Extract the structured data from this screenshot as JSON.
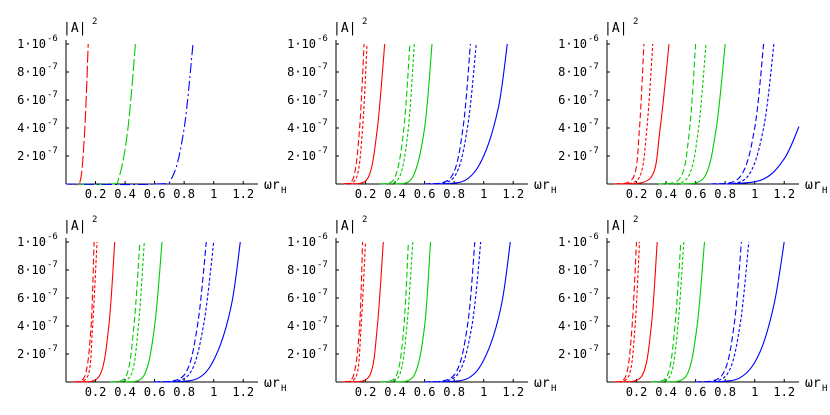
{
  "chart_data": [
    {
      "type": "line",
      "ylabel": "|A|",
      "ylabel_superscript": "2",
      "xlabel": "ωr",
      "xlabel_subscript": "H",
      "xlim": [
        0,
        1.3
      ],
      "ylim": [
        0,
        1e-06
      ],
      "xticks": [
        "0.2",
        "0.4",
        "0.6",
        "0.8",
        "1",
        "1.2"
      ],
      "yticks": [
        "2·10",
        "4·10",
        "6·10",
        "8·10",
        "1·10"
      ],
      "ytick_exponents": [
        "-7",
        "-7",
        "-7",
        "-7",
        "-6"
      ],
      "series": [
        {
          "color": "#ff0000",
          "style": "long-dash",
          "x": [
            0.0,
            0.05,
            0.1,
            0.13,
            0.15
          ],
          "y": [
            0.0,
            0.0,
            4e-08,
            4.5e-07,
            1e-06
          ]
        },
        {
          "color": "#00cc00",
          "style": "long-dash",
          "x": [
            0.0,
            0.3,
            0.36,
            0.42,
            0.47
          ],
          "y": [
            0.0,
            0.0,
            5e-08,
            4e-07,
            1e-06
          ]
        },
        {
          "color": "#0000ff",
          "style": "dash-dot",
          "x": [
            0.0,
            0.6,
            0.72,
            0.8,
            0.86
          ],
          "y": [
            0.0,
            0.0,
            5e-08,
            4e-07,
            1e-06
          ]
        }
      ]
    },
    {
      "type": "line",
      "ylabel": "|A|",
      "ylabel_superscript": "2",
      "xlabel": "ωr",
      "xlabel_subscript": "H",
      "xlim": [
        0,
        1.3
      ],
      "ylim": [
        0,
        1e-06
      ],
      "xticks": [
        "0.2",
        "0.4",
        "0.6",
        "0.8",
        "1",
        "1.2"
      ],
      "yticks": [
        "2·10",
        "4·10",
        "6·10",
        "8·10",
        "1·10"
      ],
      "ytick_exponents": [
        "-7",
        "-7",
        "-7",
        "-7",
        "-6"
      ],
      "series": [
        {
          "color": "#ff0000",
          "style": "dashed",
          "x": [
            0.05,
            0.12,
            0.16,
            0.19
          ],
          "y": [
            0.0,
            5e-08,
            4e-07,
            1e-06
          ]
        },
        {
          "color": "#ff0000",
          "style": "short-dash",
          "x": [
            0.05,
            0.14,
            0.18,
            0.21
          ],
          "y": [
            0.0,
            5e-08,
            4e-07,
            1e-06
          ]
        },
        {
          "color": "#ff0000",
          "style": "solid",
          "x": [
            0.1,
            0.22,
            0.28,
            0.33
          ],
          "y": [
            0.0,
            5e-08,
            4e-07,
            1e-06
          ]
        },
        {
          "color": "#00cc00",
          "style": "dashed",
          "x": [
            0.3,
            0.4,
            0.46,
            0.5
          ],
          "y": [
            0.0,
            5e-08,
            4e-07,
            1e-06
          ]
        },
        {
          "color": "#00cc00",
          "style": "short-dash",
          "x": [
            0.32,
            0.43,
            0.49,
            0.53
          ],
          "y": [
            0.0,
            5e-08,
            4e-07,
            1e-06
          ]
        },
        {
          "color": "#00cc00",
          "style": "solid",
          "x": [
            0.4,
            0.52,
            0.6,
            0.65
          ],
          "y": [
            0.0,
            5e-08,
            4e-07,
            1e-06
          ]
        },
        {
          "color": "#0000ff",
          "style": "dashed",
          "x": [
            0.6,
            0.78,
            0.86,
            0.91
          ],
          "y": [
            0.0,
            5e-08,
            4e-07,
            1e-06
          ]
        },
        {
          "color": "#0000ff",
          "style": "short-dash",
          "x": [
            0.62,
            0.8,
            0.89,
            0.95
          ],
          "y": [
            0.0,
            5e-08,
            4e-07,
            1e-06
          ]
        },
        {
          "color": "#0000ff",
          "style": "solid",
          "x": [
            0.7,
            0.88,
            1.0,
            1.1,
            1.16
          ],
          "y": [
            0.0,
            3e-08,
            2e-07,
            5.5e-07,
            1e-06
          ]
        }
      ]
    },
    {
      "type": "line",
      "ylabel": "|A|",
      "ylabel_superscript": "2",
      "xlabel": "ωr",
      "xlabel_subscript": "H",
      "xlim": [
        0,
        1.3
      ],
      "ylim": [
        0,
        1e-06
      ],
      "xticks": [
        "0.2",
        "0.4",
        "0.6",
        "0.8",
        "1",
        "1.2"
      ],
      "yticks": [
        "2·10",
        "4·10",
        "6·10",
        "8·10",
        "1·10"
      ],
      "ytick_exponents": [
        "-7",
        "-7",
        "-7",
        "-7",
        "-6"
      ],
      "series": [
        {
          "color": "#ff0000",
          "style": "dashed",
          "x": [
            0.05,
            0.18,
            0.22,
            0.25
          ],
          "y": [
            0.0,
            5e-08,
            4e-07,
            1e-06
          ]
        },
        {
          "color": "#ff0000",
          "style": "short-dash",
          "x": [
            0.08,
            0.22,
            0.27,
            0.31
          ],
          "y": [
            0.0,
            5e-08,
            4e-07,
            1e-06
          ]
        },
        {
          "color": "#ff0000",
          "style": "solid",
          "x": [
            0.1,
            0.3,
            0.36,
            0.42
          ],
          "y": [
            0.0,
            5e-08,
            4e-07,
            1e-06
          ]
        },
        {
          "color": "#00cc00",
          "style": "dashed",
          "x": [
            0.35,
            0.5,
            0.56,
            0.6
          ],
          "y": [
            0.0,
            5e-08,
            4e-07,
            1e-06
          ]
        },
        {
          "color": "#00cc00",
          "style": "short-dash",
          "x": [
            0.4,
            0.55,
            0.62,
            0.67
          ],
          "y": [
            0.0,
            5e-08,
            4e-07,
            1e-06
          ]
        },
        {
          "color": "#00cc00",
          "style": "solid",
          "x": [
            0.5,
            0.66,
            0.74,
            0.8
          ],
          "y": [
            0.0,
            5e-08,
            4e-07,
            1e-06
          ]
        },
        {
          "color": "#0000ff",
          "style": "dashed",
          "x": [
            0.7,
            0.9,
            1.0,
            1.06
          ],
          "y": [
            0.0,
            5e-08,
            4e-07,
            1e-06
          ]
        },
        {
          "color": "#0000ff",
          "style": "short-dash",
          "x": [
            0.75,
            0.95,
            1.06,
            1.13
          ],
          "y": [
            0.0,
            5e-08,
            4e-07,
            1e-06
          ]
        },
        {
          "color": "#0000ff",
          "style": "solid",
          "x": [
            0.8,
            1.05,
            1.2,
            1.3
          ],
          "y": [
            0.0,
            3e-08,
            1.8e-07,
            4.1e-07
          ]
        }
      ]
    },
    {
      "type": "line",
      "ylabel": "|A|",
      "ylabel_superscript": "2",
      "xlabel": "ωr",
      "xlabel_subscript": "H",
      "xlim": [
        0,
        1.3
      ],
      "ylim": [
        0,
        1e-06
      ],
      "xticks": [
        "0.2",
        "0.4",
        "0.6",
        "0.8",
        "1",
        "1.2"
      ],
      "yticks": [
        "2·10",
        "4·10",
        "6·10",
        "8·10",
        "1·10"
      ],
      "ytick_exponents": [
        "-7",
        "-7",
        "-7",
        "-7",
        "-6"
      ],
      "series": [
        {
          "color": "#ff0000",
          "style": "dashed",
          "x": [
            0.05,
            0.13,
            0.17,
            0.19
          ],
          "y": [
            0.0,
            5e-08,
            4e-07,
            1e-06
          ]
        },
        {
          "color": "#ff0000",
          "style": "short-dash",
          "x": [
            0.05,
            0.15,
            0.18,
            0.21
          ],
          "y": [
            0.0,
            5e-08,
            4e-07,
            1e-06
          ]
        },
        {
          "color": "#ff0000",
          "style": "solid",
          "x": [
            0.1,
            0.23,
            0.29,
            0.33
          ],
          "y": [
            0.0,
            5e-08,
            4e-07,
            1e-06
          ]
        },
        {
          "color": "#00cc00",
          "style": "dashed",
          "x": [
            0.3,
            0.41,
            0.46,
            0.5
          ],
          "y": [
            0.0,
            5e-08,
            4e-07,
            1e-06
          ]
        },
        {
          "color": "#00cc00",
          "style": "short-dash",
          "x": [
            0.32,
            0.44,
            0.49,
            0.53
          ],
          "y": [
            0.0,
            5e-08,
            4e-07,
            1e-06
          ]
        },
        {
          "color": "#00cc00",
          "style": "solid",
          "x": [
            0.4,
            0.53,
            0.6,
            0.65
          ],
          "y": [
            0.0,
            5e-08,
            4e-07,
            1e-06
          ]
        },
        {
          "color": "#0000ff",
          "style": "dashed",
          "x": [
            0.6,
            0.8,
            0.89,
            0.95
          ],
          "y": [
            0.0,
            5e-08,
            4e-07,
            1e-06
          ]
        },
        {
          "color": "#0000ff",
          "style": "short-dash",
          "x": [
            0.62,
            0.83,
            0.93,
            1.0
          ],
          "y": [
            0.0,
            5e-08,
            4e-07,
            1e-06
          ]
        },
        {
          "color": "#0000ff",
          "style": "solid",
          "x": [
            0.7,
            0.9,
            1.02,
            1.12,
            1.18
          ],
          "y": [
            0.0,
            3e-08,
            2e-07,
            5.5e-07,
            1e-06
          ]
        }
      ]
    },
    {
      "type": "line",
      "ylabel": "|A|",
      "ylabel_superscript": "2",
      "xlabel": "ωr",
      "xlabel_subscript": "H",
      "xlim": [
        0,
        1.3
      ],
      "ylim": [
        0,
        1e-06
      ],
      "xticks": [
        "0.2",
        "0.4",
        "0.6",
        "0.8",
        "1",
        "1.2"
      ],
      "yticks": [
        "2·10",
        "4·10",
        "6·10",
        "8·10",
        "1·10"
      ],
      "ytick_exponents": [
        "-7",
        "-7",
        "-7",
        "-7",
        "-6"
      ],
      "series": [
        {
          "color": "#ff0000",
          "style": "dashed",
          "x": [
            0.05,
            0.12,
            0.16,
            0.18
          ],
          "y": [
            0.0,
            5e-08,
            4e-07,
            1e-06
          ]
        },
        {
          "color": "#ff0000",
          "style": "short-dash",
          "x": [
            0.05,
            0.14,
            0.17,
            0.2
          ],
          "y": [
            0.0,
            5e-08,
            4e-07,
            1e-06
          ]
        },
        {
          "color": "#ff0000",
          "style": "solid",
          "x": [
            0.1,
            0.23,
            0.28,
            0.32
          ],
          "y": [
            0.0,
            5e-08,
            4e-07,
            1e-06
          ]
        },
        {
          "color": "#00cc00",
          "style": "dashed",
          "x": [
            0.3,
            0.41,
            0.46,
            0.49
          ],
          "y": [
            0.0,
            5e-08,
            4e-07,
            1e-06
          ]
        },
        {
          "color": "#00cc00",
          "style": "short-dash",
          "x": [
            0.32,
            0.43,
            0.48,
            0.52
          ],
          "y": [
            0.0,
            5e-08,
            4e-07,
            1e-06
          ]
        },
        {
          "color": "#00cc00",
          "style": "solid",
          "x": [
            0.4,
            0.53,
            0.6,
            0.64
          ],
          "y": [
            0.0,
            5e-08,
            4e-07,
            1e-06
          ]
        },
        {
          "color": "#0000ff",
          "style": "dashed",
          "x": [
            0.6,
            0.8,
            0.89,
            0.94
          ],
          "y": [
            0.0,
            5e-08,
            4e-07,
            1e-06
          ]
        },
        {
          "color": "#0000ff",
          "style": "short-dash",
          "x": [
            0.62,
            0.82,
            0.92,
            0.98
          ],
          "y": [
            0.0,
            5e-08,
            4e-07,
            1e-06
          ]
        },
        {
          "color": "#0000ff",
          "style": "solid",
          "x": [
            0.7,
            0.9,
            1.02,
            1.12,
            1.18
          ],
          "y": [
            0.0,
            3e-08,
            2e-07,
            5.5e-07,
            1e-06
          ]
        }
      ]
    },
    {
      "type": "line",
      "ylabel": "|A|",
      "ylabel_superscript": "2",
      "xlabel": "ωr",
      "xlabel_subscript": "H",
      "xlim": [
        0,
        1.3
      ],
      "ylim": [
        0,
        1e-06
      ],
      "xticks": [
        "0.2",
        "0.4",
        "0.6",
        "0.8",
        "1",
        "1.2"
      ],
      "yticks": [
        "2·10",
        "4·10",
        "6·10",
        "8·10",
        "1·10"
      ],
      "ytick_exponents": [
        "-7",
        "-7",
        "-7",
        "-7",
        "-6"
      ],
      "series": [
        {
          "color": "#ff0000",
          "style": "dashed",
          "x": [
            0.05,
            0.13,
            0.17,
            0.2
          ],
          "y": [
            0.0,
            5e-08,
            4e-07,
            1e-06
          ]
        },
        {
          "color": "#ff0000",
          "style": "short-dash",
          "x": [
            0.05,
            0.15,
            0.19,
            0.22
          ],
          "y": [
            0.0,
            5e-08,
            4e-07,
            1e-06
          ]
        },
        {
          "color": "#ff0000",
          "style": "solid",
          "x": [
            0.1,
            0.24,
            0.3,
            0.34
          ],
          "y": [
            0.0,
            5e-08,
            4e-07,
            1e-06
          ]
        },
        {
          "color": "#00cc00",
          "style": "dashed",
          "x": [
            0.3,
            0.41,
            0.46,
            0.5
          ],
          "y": [
            0.0,
            5e-08,
            4e-07,
            1e-06
          ]
        },
        {
          "color": "#00cc00",
          "style": "short-dash",
          "x": [
            0.32,
            0.43,
            0.48,
            0.52
          ],
          "y": [
            0.0,
            5e-08,
            4e-07,
            1e-06
          ]
        },
        {
          "color": "#00cc00",
          "style": "solid",
          "x": [
            0.4,
            0.54,
            0.61,
            0.66
          ],
          "y": [
            0.0,
            5e-08,
            4e-07,
            1e-06
          ]
        },
        {
          "color": "#0000ff",
          "style": "dashed",
          "x": [
            0.6,
            0.78,
            0.86,
            0.91
          ],
          "y": [
            0.0,
            5e-08,
            4e-07,
            1e-06
          ]
        },
        {
          "color": "#0000ff",
          "style": "short-dash",
          "x": [
            0.62,
            0.81,
            0.9,
            0.96
          ],
          "y": [
            0.0,
            5e-08,
            4e-07,
            1e-06
          ]
        },
        {
          "color": "#0000ff",
          "style": "solid",
          "x": [
            0.7,
            0.9,
            1.03,
            1.13,
            1.2
          ],
          "y": [
            0.0,
            3e-08,
            2e-07,
            5.5e-07,
            1e-06
          ]
        }
      ]
    }
  ]
}
